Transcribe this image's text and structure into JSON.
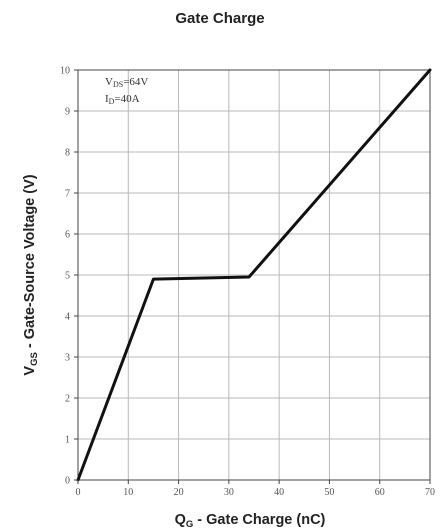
{
  "chart_data": {
    "type": "line",
    "title": "Gate Charge",
    "xlabel": {
      "main": "Q",
      "sub": "G",
      "rest": " - Gate Charge (nC)"
    },
    "ylabel": {
      "main": "V",
      "sub": "GS",
      "rest": " - Gate-Source Voltage (V)"
    },
    "xlim": [
      0,
      70
    ],
    "ylim": [
      0,
      10
    ],
    "x_ticks": [
      0,
      10,
      20,
      30,
      40,
      50,
      60,
      70
    ],
    "x_tick_labels": [
      "0",
      "10",
      "20",
      "30",
      "40",
      "50",
      "60",
      "70"
    ],
    "y_ticks": [
      0,
      1,
      2,
      3,
      4,
      5,
      6,
      7,
      8,
      9,
      10
    ],
    "y_tick_labels": [
      "0",
      "1",
      "2",
      "3",
      "4",
      "5",
      "6",
      "7",
      "8",
      "9",
      "10"
    ],
    "grid": true,
    "annotations": [
      {
        "main": "V",
        "sub": "DS",
        "rest": "=64V"
      },
      {
        "main": "I",
        "sub": "D",
        "rest": "=40A"
      }
    ],
    "series": [
      {
        "x": [
          0,
          15,
          34,
          70
        ],
        "y": [
          0,
          4.9,
          4.95,
          10
        ]
      }
    ],
    "colors": {
      "line": "#111111",
      "grid": "#b8b8b8",
      "frame": "#444444"
    }
  }
}
